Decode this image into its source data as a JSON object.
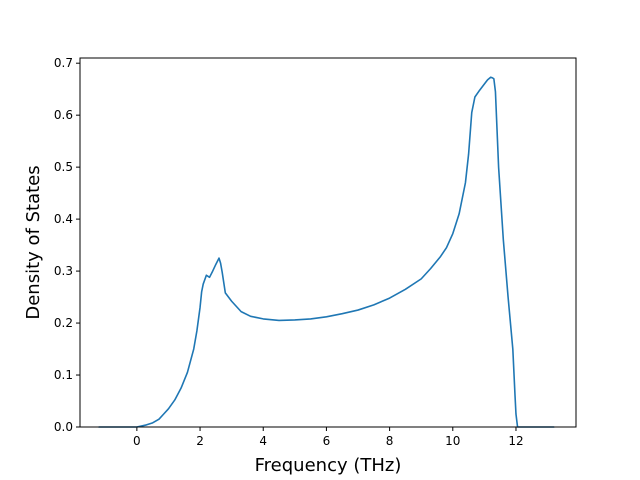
{
  "chart_data": {
    "type": "line",
    "title": "",
    "xlabel": "Frequency (THz)",
    "ylabel": "Density of States",
    "xlim": [
      -1.8,
      13.9
    ],
    "ylim": [
      0,
      0.71
    ],
    "xticks": [
      0,
      2,
      4,
      6,
      8,
      10,
      12
    ],
    "yticks": [
      0.0,
      0.1,
      0.2,
      0.3,
      0.4,
      0.5,
      0.6,
      0.7
    ],
    "xtick_labels": [
      "0",
      "2",
      "4",
      "6",
      "8",
      "10",
      "12"
    ],
    "ytick_labels": [
      "0.0",
      "0.1",
      "0.2",
      "0.3",
      "0.4",
      "0.5",
      "0.6",
      "0.7"
    ],
    "grid": false,
    "legend": "none",
    "series": [
      {
        "color": "#1f77b4",
        "x": [
          -1.2,
          -0.5,
          0.0,
          0.3,
          0.5,
          0.7,
          0.85,
          1.0,
          1.2,
          1.4,
          1.6,
          1.8,
          1.9,
          2.0,
          2.05,
          2.1,
          2.2,
          2.3,
          2.4,
          2.5,
          2.6,
          2.65,
          2.7,
          2.8,
          3.0,
          3.3,
          3.6,
          4.0,
          4.5,
          5.0,
          5.5,
          6.0,
          6.5,
          7.0,
          7.5,
          8.0,
          8.5,
          9.0,
          9.3,
          9.6,
          9.8,
          10.0,
          10.2,
          10.4,
          10.5,
          10.6,
          10.7,
          10.85,
          11.0,
          11.1,
          11.2,
          11.25,
          11.3,
          11.35,
          11.45,
          11.6,
          11.75,
          11.9,
          11.97,
          12.0,
          12.05,
          12.5,
          13.2
        ],
        "y": [
          0.0,
          0.0,
          0.0,
          0.004,
          0.008,
          0.015,
          0.025,
          0.035,
          0.052,
          0.075,
          0.105,
          0.15,
          0.185,
          0.23,
          0.26,
          0.275,
          0.292,
          0.288,
          0.3,
          0.313,
          0.325,
          0.315,
          0.298,
          0.258,
          0.242,
          0.222,
          0.213,
          0.208,
          0.205,
          0.206,
          0.208,
          0.212,
          0.218,
          0.225,
          0.235,
          0.248,
          0.265,
          0.285,
          0.305,
          0.327,
          0.345,
          0.372,
          0.41,
          0.47,
          0.525,
          0.605,
          0.635,
          0.648,
          0.66,
          0.668,
          0.673,
          0.672,
          0.67,
          0.645,
          0.5,
          0.36,
          0.25,
          0.15,
          0.06,
          0.025,
          0.0,
          0.0,
          0.0
        ]
      }
    ]
  }
}
